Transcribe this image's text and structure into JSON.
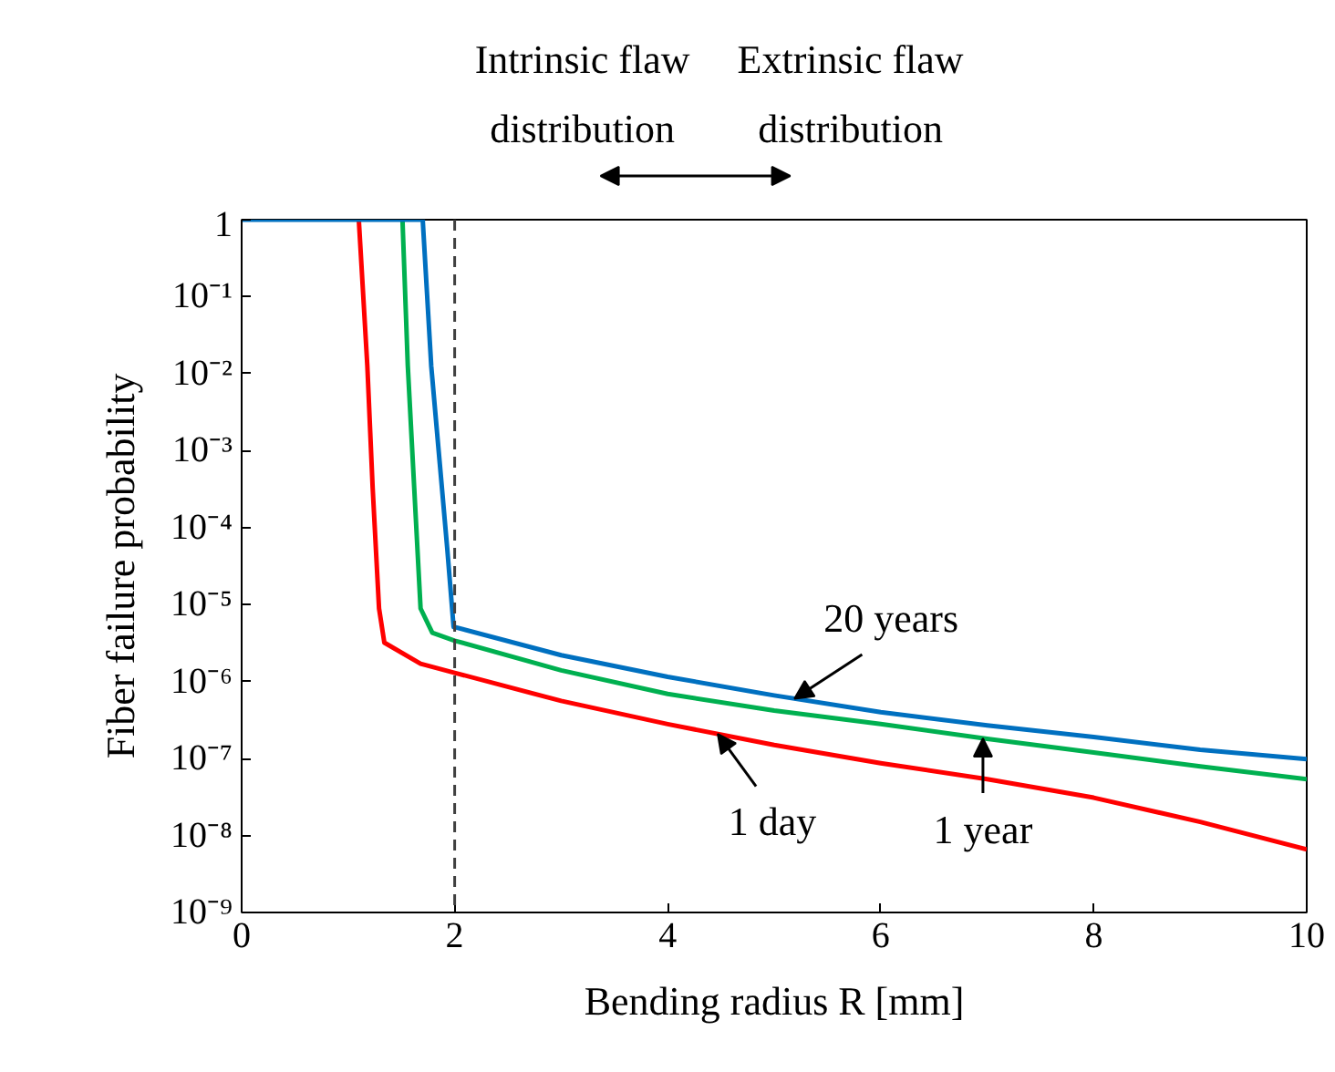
{
  "chart_data": {
    "type": "line",
    "xlabel": "Bending radius R [mm]",
    "ylabel": "Fiber failure probability",
    "log": "y",
    "grid": false,
    "legend": false,
    "marker": "none",
    "line_style": "solid",
    "xlim": [
      0,
      10
    ],
    "xticks": [
      0,
      2,
      4,
      6,
      8,
      10
    ],
    "ylim": [
      1e-09,
      1
    ],
    "yticks": [
      1,
      {
        "value": 0.1,
        "label": "10⁻¹"
      },
      {
        "value": 0.01,
        "label": "10⁻²"
      },
      {
        "value": 0.001,
        "label": "10⁻³"
      },
      {
        "value": 0.0001,
        "label": "10⁻⁴"
      },
      {
        "value": 1e-05,
        "label": "10⁻⁵"
      },
      {
        "value": 1e-06,
        "label": "10⁻⁶"
      },
      {
        "value": 1e-07,
        "label": "10⁻⁷"
      },
      {
        "value": 1e-08,
        "label": "10⁻⁸"
      },
      {
        "value": 1e-09,
        "label": "10⁻⁹"
      }
    ],
    "series": [
      {
        "name": "1 day",
        "color": "#ff0000",
        "x": [
          1.1,
          1.18,
          1.23,
          1.29,
          1.34,
          1.68,
          2,
          3,
          4,
          5,
          6,
          7,
          8,
          9,
          10
        ],
        "values": [
          1,
          0.0126,
          0.00033,
          8.9e-06,
          3.2e-06,
          1.7e-06,
          1.3e-06,
          5.6e-07,
          2.8e-07,
          1.5e-07,
          8.7e-08,
          5.4e-08,
          3.1e-08,
          1.5e-08,
          6.6e-09
        ]
      },
      {
        "name": "1 year",
        "color": "#00b050",
        "x": [
          1.51,
          1.56,
          1.62,
          1.68,
          1.79,
          2,
          3,
          4,
          5,
          6,
          7,
          8,
          9,
          10
        ],
        "values": [
          1,
          0.0126,
          0.00033,
          8.9e-06,
          4.3e-06,
          3.4e-06,
          1.4e-06,
          6.9e-07,
          4.2e-07,
          2.8e-07,
          1.8e-07,
          1.2e-07,
          7.9e-08,
          5.4e-08
        ]
      },
      {
        "name": "20 years",
        "color": "#0070c0",
        "x": [
          0,
          1.7,
          1.78,
          1.93,
          1.99,
          2,
          3,
          4,
          5,
          6,
          7,
          8,
          9,
          10
        ],
        "values": [
          1,
          1,
          0.0126,
          5.4e-05,
          5.1e-06,
          5.1e-06,
          2.2e-06,
          1.15e-06,
          6.6e-07,
          4e-07,
          2.7e-07,
          1.9e-07,
          1.3e-07,
          9.8e-08
        ]
      }
    ],
    "ref_lines": [
      {
        "axis": "x",
        "value": 2,
        "color": "#404040",
        "line_style": "dashed"
      }
    ],
    "annotations": [
      "Intrinsic flaw\ndistribution",
      "Extrinsic flaw\ndistribution"
    ]
  }
}
